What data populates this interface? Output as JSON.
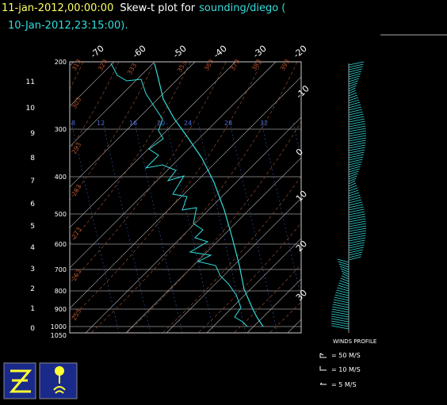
{
  "header": {
    "time": "11-jan-2012,00:00:00",
    "title": "Skew-t plot for",
    "source": "sounding/diego (",
    "valid": "10-Jan-2012,23:15:00)."
  },
  "pressure_labels": [
    "200",
    "300",
    "400",
    "500",
    "600",
    "700",
    "800",
    "900",
    "1000",
    "1050"
  ],
  "height_labels": [
    "11",
    "10",
    "9",
    "8",
    "7",
    "6",
    "5",
    "4",
    "3",
    "2",
    "1",
    "0"
  ],
  "temperature_labels": [
    "-70",
    "-60",
    "-50",
    "-40",
    "-30",
    "-20"
  ],
  "right_labels": [
    "-10",
    "0",
    "10",
    "20",
    "30"
  ],
  "mixing_ratio_labels": [
    "8",
    "12",
    "16",
    "20",
    "24",
    "28",
    "32"
  ],
  "theta_labels": [
    "313",
    "323",
    "333",
    "353",
    "363",
    "373",
    "383",
    "393",
    "303",
    "293",
    "283",
    "273",
    "263",
    "253"
  ],
  "legend": {
    "title": "WINDS PROFILE",
    "items": [
      "= 50 M/S",
      "= 10 M/S",
      "= 5 M/S"
    ]
  }
}
